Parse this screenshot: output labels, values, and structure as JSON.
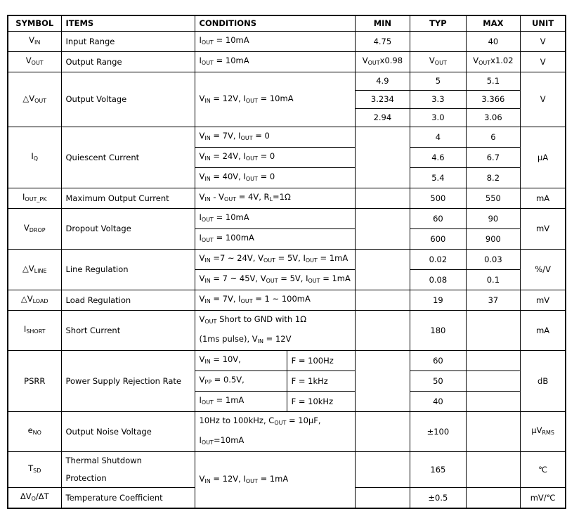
{
  "table": {
    "header": [
      "SYMBOL",
      "ITEMS",
      "CONDITIONS",
      "MIN",
      "TYP",
      "MAX",
      "UNIT"
    ],
    "rows": [
      [
        [
          [
            "V",
            {
              "sub": "IN"
            }
          ]
        ],
        [
          [
            "Input Range"
          ]
        ],
        [
          [
            "I",
            {
              "sub": "OUT"
            },
            " = 10mA"
          ]
        ],
        [
          [
            "4.75"
          ]
        ],
        [
          [
            "40"
          ]
        ],
        [
          [
            "V"
          ]
        ]
      ],
      [
        [
          [
            "V",
            {
              "sub": "OUT"
            }
          ]
        ],
        [
          [
            "Output Range"
          ]
        ],
        [
          [
            "I",
            {
              "sub": "OUT"
            },
            " = 10mA"
          ]
        ],
        [
          [
            "V",
            {
              "sub": "OUT"
            },
            "x0.98"
          ]
        ],
        [
          [
            "V",
            {
              "sub": "OUT"
            }
          ]
        ],
        [
          [
            "V",
            {
              "sub": "OUT"
            },
            "x1.02"
          ]
        ],
        [
          [
            "V"
          ]
        ]
      ],
      [
        [
          [
            "△V",
            {
              "sub": "OUT"
            }
          ]
        ],
        [
          [
            "Output Voltage"
          ]
        ],
        [
          [
            "V",
            {
              "sub": "IN"
            },
            " = 12V, I",
            {
              "sub": "OUT"
            },
            " = 10mA"
          ]
        ],
        [
          [
            "4.9"
          ]
        ],
        [
          [
            "5"
          ]
        ],
        [
          [
            "5.1"
          ]
        ],
        [
          [
            "V"
          ]
        ]
      ],
      [
        [
          [
            "3.234"
          ]
        ],
        [
          [
            "3.3"
          ]
        ],
        [
          [
            "3.366"
          ]
        ]
      ],
      [
        [
          [
            "2.94"
          ]
        ],
        [
          [
            "3.0"
          ]
        ],
        [
          [
            "3.06"
          ]
        ]
      ],
      [
        [
          [
            "I",
            {
              "sub": "Q"
            }
          ]
        ],
        [
          [
            "Quiescent Current"
          ]
        ],
        [
          [
            "V",
            {
              "sub": "IN"
            },
            " = 7V, I",
            {
              "sub": "OUT"
            },
            " = 0"
          ]
        ],
        [
          [
            "4"
          ]
        ],
        [
          [
            "6"
          ]
        ],
        [
          [
            "μA"
          ]
        ]
      ],
      [
        [
          [
            "V",
            {
              "sub": "IN"
            },
            " = 24V, I",
            {
              "sub": "OUT"
            },
            " = 0"
          ]
        ],
        [
          [
            "4.6"
          ]
        ],
        [
          [
            "6.7"
          ]
        ]
      ],
      [
        [
          [
            "V",
            {
              "sub": "IN"
            },
            " = 40V, I",
            {
              "sub": "OUT"
            },
            " = 0"
          ]
        ],
        [
          [
            "5.4"
          ]
        ],
        [
          [
            "8.2"
          ]
        ]
      ],
      [
        [
          [
            "I",
            {
              "sub": "OUT_PK"
            }
          ]
        ],
        [
          [
            "Maximum Output Current"
          ]
        ],
        [
          [
            "V",
            {
              "sub": "IN"
            },
            " - V",
            {
              "sub": "OUT"
            },
            " = 4V, R",
            {
              "sub": "L"
            },
            "=1Ω"
          ]
        ],
        [
          [
            "500"
          ]
        ],
        [
          [
            "550"
          ]
        ],
        [
          [
            "mA"
          ]
        ]
      ],
      [
        [
          [
            "V",
            {
              "sub": "DROP"
            }
          ]
        ],
        [
          [
            "Dropout Voltage"
          ]
        ],
        [
          [
            "I",
            {
              "sub": "OUT"
            },
            " = 10mA"
          ]
        ],
        [
          [
            "60"
          ]
        ],
        [
          [
            "90"
          ]
        ],
        [
          [
            "mV"
          ]
        ]
      ],
      [
        [
          [
            "I",
            {
              "sub": "OUT"
            },
            " = 100mA"
          ]
        ],
        [
          [
            "600"
          ]
        ],
        [
          [
            "900"
          ]
        ]
      ],
      [
        [
          [
            "△V",
            {
              "sub": "LINE"
            }
          ]
        ],
        [
          [
            "Line Regulation"
          ]
        ],
        [
          [
            "V",
            {
              "sub": "IN"
            },
            " =7 ~ 24V, V",
            {
              "sub": "OUT"
            },
            " = 5V, I",
            {
              "sub": "OUT"
            },
            " = 1mA"
          ]
        ],
        [
          [
            "0.02"
          ]
        ],
        [
          [
            "0.03"
          ]
        ],
        [
          [
            "%/V"
          ]
        ]
      ],
      [
        [
          [
            "V",
            {
              "sub": "IN"
            },
            " = 7 ~ 45V, V",
            {
              "sub": "OUT"
            },
            " = 5V, I",
            {
              "sub": "OUT"
            },
            " = 1mA"
          ]
        ],
        [
          [
            "0.08"
          ]
        ],
        [
          [
            "0.1"
          ]
        ]
      ],
      [
        [
          [
            "△V",
            {
              "sub": "LOAD"
            }
          ]
        ],
        [
          [
            "Load Regulation"
          ]
        ],
        [
          [
            "V",
            {
              "sub": "IN"
            },
            " = 7V, I",
            {
              "sub": "OUT"
            },
            " = 1 ~ 100mA"
          ]
        ],
        [
          [
            "19"
          ]
        ],
        [
          [
            "37"
          ]
        ],
        [
          [
            "mV"
          ]
        ]
      ],
      [
        [
          [
            "I",
            {
              "sub": "SHORT"
            }
          ]
        ],
        [
          [
            "Short Current"
          ]
        ],
        [
          [
            "V",
            {
              "sub": "OUT"
            },
            " Short to GND with 1Ω"
          ],
          [
            "(1ms pulse), V",
            {
              "sub": "IN"
            },
            " = 12V"
          ]
        ],
        [
          [
            "180"
          ]
        ],
        [
          [
            "mA"
          ]
        ]
      ],
      [
        [
          [
            "PSRR"
          ]
        ],
        [
          [
            "Power Supply Rejection Rate"
          ]
        ],
        [
          [
            "V",
            {
              "sub": "IN"
            },
            " = 10V,"
          ]
        ],
        [
          [
            "F = 100Hz"
          ]
        ],
        [
          [
            "60"
          ]
        ],
        [
          [
            "dB"
          ]
        ]
      ],
      [
        [
          [
            "V",
            {
              "sub": "PP"
            },
            " = 0.5V,"
          ]
        ],
        [
          [
            "F = 1kHz"
          ]
        ],
        [
          [
            "50"
          ]
        ]
      ],
      [
        [
          [
            "I",
            {
              "sub": "OUT"
            },
            " = 1mA"
          ]
        ],
        [
          [
            "F = 10kHz"
          ]
        ],
        [
          [
            "40"
          ]
        ]
      ],
      [
        [
          [
            "e",
            {
              "sub": "NO"
            }
          ]
        ],
        [
          [
            "Output Noise Voltage"
          ]
        ],
        [
          [
            "10Hz to 100kHz, C",
            {
              "sub": "OUT"
            },
            " = 10μF,"
          ],
          [
            "I",
            {
              "sub": "OUT"
            },
            "=10mA"
          ]
        ],
        [
          [
            "±100"
          ]
        ],
        [
          [
            "μV",
            {
              "sub": "RMS"
            }
          ]
        ]
      ],
      [
        [
          [
            "T",
            {
              "sub": "SD"
            }
          ]
        ],
        [
          [
            "Thermal Shutdown"
          ],
          [
            "Protection"
          ]
        ],
        [
          [
            "V",
            {
              "sub": "IN"
            },
            " = 12V, I",
            {
              "sub": "OUT"
            },
            " = 1mA"
          ]
        ],
        [
          [
            "165"
          ]
        ],
        [
          [
            "℃"
          ]
        ]
      ],
      [
        [
          [
            "ΔV",
            {
              "sub": "O"
            },
            "/ΔT"
          ]
        ],
        [
          [
            "Temperature Coefficient"
          ]
        ],
        [
          [
            "±0.5"
          ]
        ],
        [
          [
            "mV/℃"
          ]
        ]
      ]
    ]
  }
}
